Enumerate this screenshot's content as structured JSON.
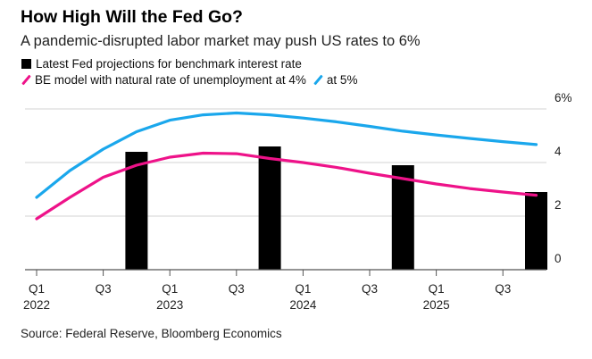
{
  "title": "How High Will the Fed Go?",
  "subtitle": "A pandemic-disrupted labor market may push US rates to 6%",
  "legend": {
    "fed": "Latest Fed projections for benchmark interest rate",
    "be4": "BE model with natural rate of unemployment at 4%",
    "be5": "at 5%"
  },
  "source": "Source: Federal Reserve, Bloomberg Economics",
  "colors": {
    "fed": "#000000",
    "be4": "#ee1289",
    "be5": "#1aa7ec",
    "grid": "#e2e2e2"
  },
  "chart_data": {
    "type": "bar+line",
    "x": [
      "Q1 2022",
      "Q2 2022",
      "Q3 2022",
      "Q4 2022",
      "Q1 2023",
      "Q2 2023",
      "Q3 2023",
      "Q4 2023",
      "Q1 2024",
      "Q2 2024",
      "Q3 2024",
      "Q4 2024",
      "Q1 2025",
      "Q2 2025",
      "Q3 2025",
      "Q4 2025"
    ],
    "x_ticks": [
      {
        "q": "Q1",
        "year": "2022",
        "index": 0
      },
      {
        "q": "Q3",
        "year": "",
        "index": 2
      },
      {
        "q": "Q1",
        "year": "2023",
        "index": 4
      },
      {
        "q": "Q3",
        "year": "",
        "index": 6
      },
      {
        "q": "Q1",
        "year": "2024",
        "index": 8
      },
      {
        "q": "Q3",
        "year": "",
        "index": 10
      },
      {
        "q": "Q1",
        "year": "2025",
        "index": 12
      },
      {
        "q": "Q3",
        "year": "",
        "index": 14
      }
    ],
    "y_ticks": [
      "0",
      "2",
      "4",
      "6%"
    ],
    "y_tick_values": [
      0,
      2,
      4,
      6
    ],
    "ylim": [
      0,
      6
    ],
    "y_axis_side": "right",
    "grid": true,
    "series": [
      {
        "name": "Latest Fed projections for benchmark interest rate",
        "type": "bar",
        "points": [
          {
            "x": "Q4 2022",
            "y": 4.4
          },
          {
            "x": "Q4 2023",
            "y": 4.6
          },
          {
            "x": "Q4 2024",
            "y": 3.9
          },
          {
            "x": "Q4 2025",
            "y": 2.9
          }
        ]
      },
      {
        "name": "BE model with natural rate of unemployment at 4%",
        "type": "line",
        "values": [
          1.9,
          2.7,
          3.45,
          3.9,
          4.2,
          4.35,
          4.33,
          4.15,
          4.0,
          3.82,
          3.6,
          3.4,
          3.2,
          3.03,
          2.9,
          2.78
        ]
      },
      {
        "name": "at 5%",
        "type": "line",
        "values": [
          2.7,
          3.7,
          4.5,
          5.15,
          5.58,
          5.78,
          5.85,
          5.78,
          5.66,
          5.52,
          5.35,
          5.17,
          5.03,
          4.9,
          4.78,
          4.67
        ]
      }
    ]
  }
}
